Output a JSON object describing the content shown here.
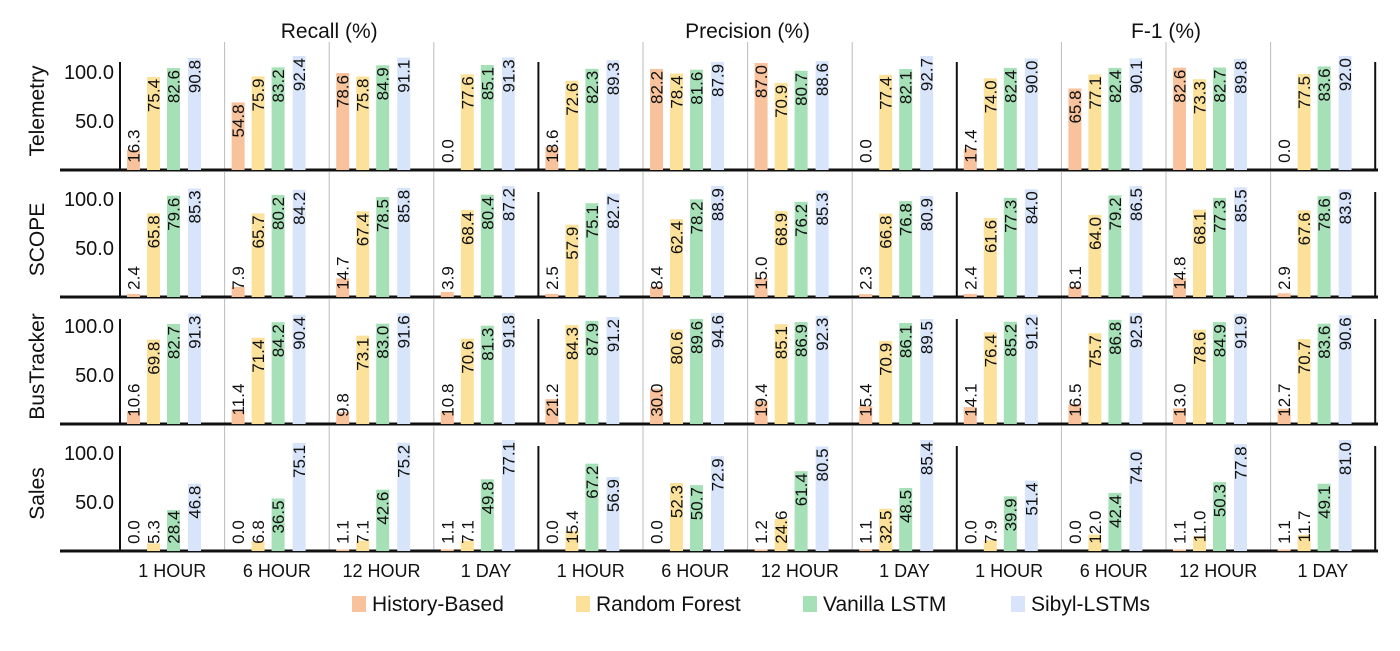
{
  "chart_data": {
    "type": "bar",
    "metrics": [
      "Recall (%)",
      "Precision (%)",
      "F-1 (%)"
    ],
    "datasets": [
      "Telemetry",
      "SCOPE",
      "BusTracker",
      "Sales"
    ],
    "categories": [
      "1 HOUR",
      "6 HOUR",
      "12 HOUR",
      "1 DAY"
    ],
    "y_ticks": [
      "50.0",
      "100.0"
    ],
    "legend": {
      "position": "bottom"
    },
    "series": [
      {
        "name": "History-Based",
        "color": "#f8c29c"
      },
      {
        "name": "Random Forest",
        "color": "#fbe19a"
      },
      {
        "name": "Vanilla LSTM",
        "color": "#a6e0b6"
      },
      {
        "name": "Sibyl-LSTMs",
        "color": "#d7e4fa"
      }
    ],
    "values": {
      "Telemetry": {
        "Recall (%)": [
          [
            16.3,
            75.4,
            82.6,
            90.8
          ],
          [
            54.8,
            75.9,
            83.2,
            92.4
          ],
          [
            78.6,
            75.8,
            84.9,
            91.1
          ],
          [
            0.0,
            77.6,
            85.1,
            91.3
          ]
        ],
        "Precision (%)": [
          [
            18.6,
            72.6,
            82.3,
            89.3
          ],
          [
            82.2,
            78.4,
            81.6,
            87.9
          ],
          [
            87.0,
            70.9,
            80.7,
            88.6
          ],
          [
            0.0,
            77.4,
            82.1,
            92.7
          ]
        ],
        "F-1 (%)": [
          [
            17.4,
            74.0,
            82.4,
            90.0
          ],
          [
            65.8,
            77.1,
            82.4,
            90.1
          ],
          [
            82.6,
            73.3,
            82.7,
            89.8
          ],
          [
            0.0,
            77.5,
            83.6,
            92.0
          ]
        ]
      },
      "SCOPE": {
        "Recall (%)": [
          [
            2.4,
            65.8,
            79.6,
            85.3
          ],
          [
            7.9,
            65.7,
            80.2,
            84.2
          ],
          [
            14.7,
            67.4,
            78.5,
            85.8
          ],
          [
            3.9,
            68.4,
            80.4,
            87.2
          ]
        ],
        "Precision (%)": [
          [
            2.5,
            57.9,
            75.1,
            82.7
          ],
          [
            8.4,
            62.4,
            78.2,
            88.9
          ],
          [
            15.0,
            68.9,
            76.2,
            85.3
          ],
          [
            2.3,
            66.8,
            76.8,
            80.9
          ]
        ],
        "F-1 (%)": [
          [
            2.4,
            61.6,
            77.3,
            84.0
          ],
          [
            8.1,
            64.0,
            79.2,
            86.5
          ],
          [
            14.8,
            68.1,
            77.3,
            85.5
          ],
          [
            2.9,
            67.6,
            78.6,
            83.9
          ]
        ]
      },
      "BusTracker": {
        "Recall (%)": [
          [
            10.6,
            69.8,
            82.7,
            91.3
          ],
          [
            11.4,
            71.4,
            84.2,
            90.4
          ],
          [
            9.8,
            73.1,
            83.0,
            91.6
          ],
          [
            10.8,
            70.6,
            81.3,
            91.8
          ]
        ],
        "Precision (%)": [
          [
            21.2,
            84.3,
            87.9,
            91.2
          ],
          [
            30.0,
            80.6,
            89.6,
            94.6
          ],
          [
            19.4,
            85.1,
            86.9,
            92.3
          ],
          [
            15.4,
            70.9,
            86.1,
            89.5
          ]
        ],
        "F-1 (%)": [
          [
            14.1,
            76.4,
            85.2,
            91.2
          ],
          [
            16.5,
            75.7,
            86.8,
            92.5
          ],
          [
            13.0,
            78.6,
            84.9,
            91.9
          ],
          [
            12.7,
            70.7,
            83.6,
            90.6
          ]
        ]
      },
      "Sales": {
        "Recall (%)": [
          [
            0.0,
            5.3,
            28.4,
            46.8
          ],
          [
            0.0,
            6.8,
            36.5,
            75.1
          ],
          [
            1.1,
            7.1,
            42.6,
            75.2
          ],
          [
            1.1,
            7.1,
            49.8,
            77.1
          ]
        ],
        "Precision (%)": [
          [
            0.0,
            15.4,
            67.2,
            56.9
          ],
          [
            0.0,
            52.3,
            50.7,
            72.9
          ],
          [
            1.2,
            24.6,
            61.4,
            80.5
          ],
          [
            1.1,
            32.5,
            48.5,
            85.4
          ]
        ],
        "F-1 (%)": [
          [
            0.0,
            7.9,
            39.9,
            51.4
          ],
          [
            0.0,
            12.0,
            42.4,
            74.0
          ],
          [
            1.1,
            11.0,
            50.3,
            77.8
          ],
          [
            1.1,
            11.7,
            49.1,
            81.0
          ]
        ]
      }
    }
  }
}
